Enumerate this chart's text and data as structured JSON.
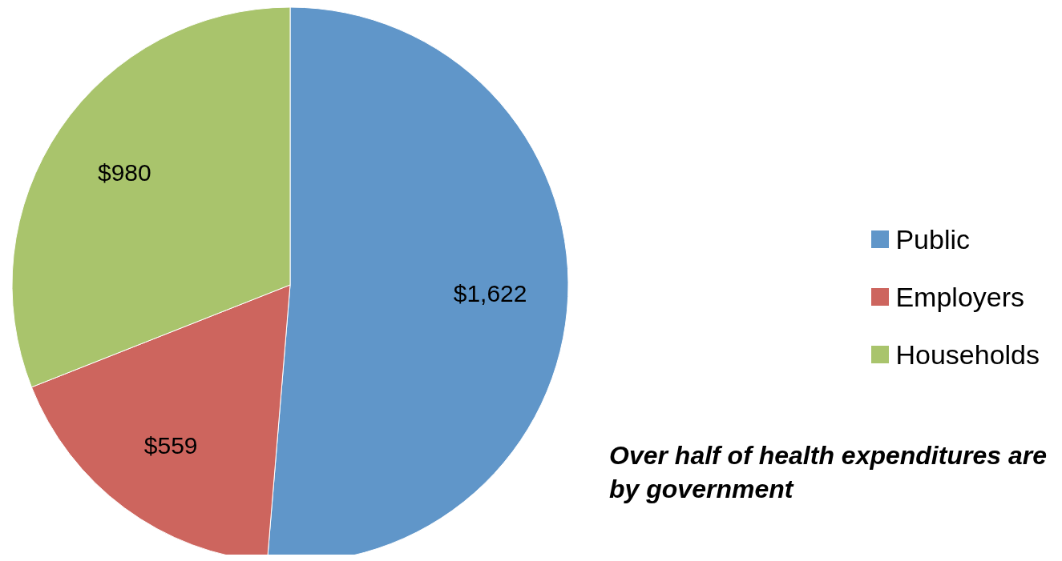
{
  "chart_data": {
    "type": "pie",
    "categories": [
      "Public",
      "Employers",
      "Households"
    ],
    "values": [
      1622,
      559,
      980
    ],
    "colors": [
      "#6096c9",
      "#cd655e",
      "#a9c46c"
    ],
    "value_labels": [
      "$1,622",
      "$559",
      "$980"
    ],
    "legend": "right",
    "annotations": [
      "Over half of health expenditures are by government"
    ]
  }
}
